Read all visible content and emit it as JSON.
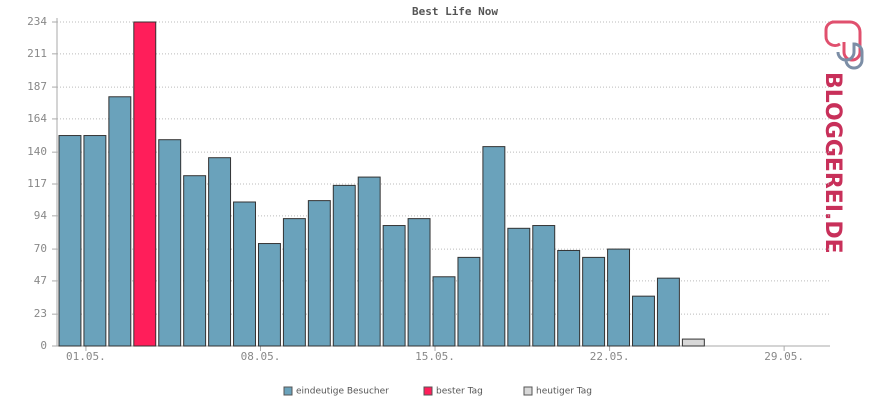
{
  "chart_data": {
    "type": "bar",
    "title": "Best Life Now",
    "categories": [
      "01.05.",
      null,
      null,
      null,
      null,
      null,
      null,
      "08.05.",
      null,
      null,
      null,
      null,
      null,
      null,
      "15.05.",
      null,
      null,
      null,
      null,
      null,
      null,
      "22.05.",
      null,
      null,
      null,
      null,
      null,
      null,
      "29.05.",
      null,
      null
    ],
    "series": [
      {
        "name": "eindeutige Besucher",
        "color": "#6aa2bb",
        "values": [
          152,
          152,
          180,
          null,
          149,
          123,
          136,
          104,
          74,
          92,
          105,
          116,
          122,
          87,
          92,
          50,
          64,
          144,
          85,
          87,
          69,
          64,
          70,
          36,
          49,
          null,
          null,
          null,
          null,
          null,
          null
        ]
      },
      {
        "name": "bester Tag",
        "color": "#ff1e5a",
        "values": [
          null,
          null,
          null,
          234,
          null,
          null,
          null,
          null,
          null,
          null,
          null,
          null,
          null,
          null,
          null,
          null,
          null,
          null,
          null,
          null,
          null,
          null,
          null,
          null,
          null,
          null,
          null,
          null,
          null,
          null,
          null
        ]
      },
      {
        "name": "heutiger Tag",
        "color": "#d8d8d8",
        "values": [
          null,
          null,
          null,
          null,
          null,
          null,
          null,
          null,
          null,
          null,
          null,
          null,
          null,
          null,
          null,
          null,
          null,
          null,
          null,
          null,
          null,
          null,
          null,
          null,
          null,
          5,
          null,
          null,
          null,
          null,
          null
        ]
      }
    ],
    "ylim": [
      0,
      234
    ],
    "yticks": [
      0,
      23,
      47,
      70,
      94,
      117,
      140,
      164,
      187,
      211,
      234
    ],
    "grid": true
  },
  "logo": "BLOGGEREI.DE"
}
